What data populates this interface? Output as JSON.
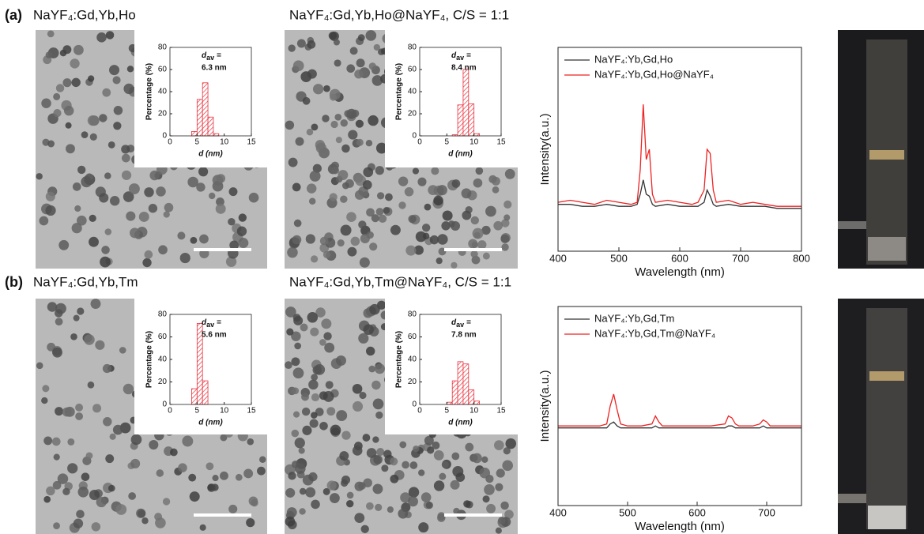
{
  "panels": [
    {
      "label": "(a)",
      "titles": [
        "NaYF₄:Gd,Yb,Ho",
        "NaYF₄:Gd,Yb,Ho@NaYF₄, C/S = 1:1"
      ]
    },
    {
      "label": "(b)",
      "titles": [
        "NaYF₄:Gd,Yb,Tm",
        "NaYF₄:Gd,Yb,Tm@NaYF₄, C/S = 1:1"
      ]
    }
  ],
  "chart_data": [
    {
      "type": "histogram",
      "bins": [
        4,
        5,
        6,
        7,
        8,
        9
      ],
      "values": [
        4,
        33,
        48,
        17,
        2
      ],
      "color": "#e8323c",
      "xlim": [
        0,
        15
      ],
      "ylim": [
        0,
        80
      ],
      "xticks": [
        0,
        5,
        10,
        15
      ],
      "yticks": [
        0,
        20,
        40,
        60,
        80
      ],
      "xlabel": "d (nm)",
      "ylabel": "Percentage (%)",
      "annotation": {
        "symbol": "d",
        "subscript": "av",
        "relation": "=",
        "value": "6.3 nm"
      }
    },
    {
      "type": "histogram",
      "bins": [
        6,
        7,
        8,
        9,
        10,
        11
      ],
      "values": [
        1,
        28,
        60,
        29,
        2
      ],
      "color": "#e8323c",
      "xlim": [
        0,
        15
      ],
      "ylim": [
        0,
        80
      ],
      "xticks": [
        0,
        5,
        10,
        15
      ],
      "yticks": [
        0,
        20,
        40,
        60,
        80
      ],
      "xlabel": "d (nm)",
      "ylabel": "Percentage (%)",
      "annotation": {
        "symbol": "d",
        "subscript": "av",
        "relation": "=",
        "value": "8.4 nm"
      }
    },
    {
      "type": "line",
      "x": [
        400,
        420,
        440,
        460,
        480,
        500,
        520,
        530,
        535,
        540,
        545,
        550,
        555,
        560,
        580,
        600,
        620,
        630,
        640,
        645,
        650,
        655,
        660,
        680,
        700,
        720,
        740,
        760,
        780,
        800
      ],
      "series": [
        {
          "name": "NaYF₄:Yb,Gd,Ho",
          "color": "#333333",
          "values": [
            23,
            23,
            22,
            22,
            23,
            22,
            22,
            23,
            28,
            35,
            28,
            27,
            23,
            22,
            23,
            22,
            22,
            22,
            24,
            30,
            27,
            23,
            22,
            23,
            22,
            22,
            22,
            21,
            21,
            21
          ]
        },
        {
          "name": "NaYF₄:Yb,Gd,Ho@NaYF₄",
          "color": "#ee2222",
          "values": [
            24,
            25,
            24,
            23,
            25,
            24,
            23,
            24,
            40,
            72,
            45,
            50,
            28,
            24,
            25,
            24,
            23,
            24,
            30,
            50,
            48,
            30,
            24,
            25,
            23,
            24,
            23,
            22,
            22,
            22
          ]
        }
      ],
      "xlim": [
        400,
        800
      ],
      "ylim": [
        0,
        100
      ],
      "xticks": [
        400,
        500,
        600,
        700,
        800
      ],
      "xlabel": "Wavelength (nm)",
      "ylabel": "Intensity(a.u.)",
      "legend": "upper left"
    },
    {
      "type": "histogram",
      "bins": [
        4,
        5,
        6,
        7
      ],
      "values": [
        14,
        72,
        21
      ],
      "color": "#e8323c",
      "xlim": [
        0,
        15
      ],
      "ylim": [
        0,
        80
      ],
      "xticks": [
        0,
        5,
        10,
        15
      ],
      "yticks": [
        0,
        20,
        40,
        60,
        80
      ],
      "xlabel": "d (nm)",
      "ylabel": "Percentage (%)",
      "annotation": {
        "symbol": "d",
        "subscript": "av",
        "relation": "=",
        "value": "5.6 nm"
      }
    },
    {
      "type": "histogram",
      "bins": [
        5,
        6,
        7,
        8,
        9,
        10,
        11
      ],
      "values": [
        2,
        21,
        38,
        36,
        13,
        3
      ],
      "color": "#e8323c",
      "xlim": [
        0,
        15
      ],
      "ylim": [
        0,
        80
      ],
      "xticks": [
        0,
        5,
        10,
        15
      ],
      "yticks": [
        0,
        20,
        40,
        60,
        80
      ],
      "xlabel": "d (nm)",
      "ylabel": "Percentage (%)",
      "annotation": {
        "symbol": "d",
        "subscript": "av",
        "relation": "=",
        "value": "7.8 nm"
      }
    },
    {
      "type": "line",
      "x": [
        400,
        420,
        440,
        460,
        470,
        475,
        480,
        485,
        490,
        500,
        520,
        535,
        540,
        545,
        550,
        580,
        600,
        620,
        640,
        645,
        650,
        655,
        660,
        680,
        690,
        695,
        700,
        705,
        720,
        750
      ],
      "series": [
        {
          "name": "NaYF₄:Yb,Gd,Tm",
          "color": "#333333",
          "values": [
            39,
            39,
            39,
            39,
            39,
            41,
            42,
            40,
            39,
            39,
            39,
            39,
            40,
            39,
            39,
            39,
            39,
            39,
            39,
            40,
            40,
            39,
            39,
            39,
            39,
            40,
            39,
            39,
            39,
            39
          ]
        },
        {
          "name": "NaYF₄:Yb,Gd,Tm@NaYF₄",
          "color": "#ee2222",
          "values": [
            40,
            40,
            40,
            40,
            41,
            50,
            56,
            48,
            41,
            40,
            40,
            41,
            45,
            42,
            40,
            40,
            40,
            40,
            41,
            45,
            44,
            41,
            40,
            40,
            41,
            43,
            42,
            40,
            40,
            40
          ]
        }
      ],
      "xlim": [
        400,
        750
      ],
      "ylim": [
        0,
        100
      ],
      "xticks": [
        400,
        500,
        600,
        700
      ],
      "xlabel": "Wavelength (nm)",
      "ylabel": "Intensity(a.u.)",
      "legend": "upper left"
    }
  ]
}
